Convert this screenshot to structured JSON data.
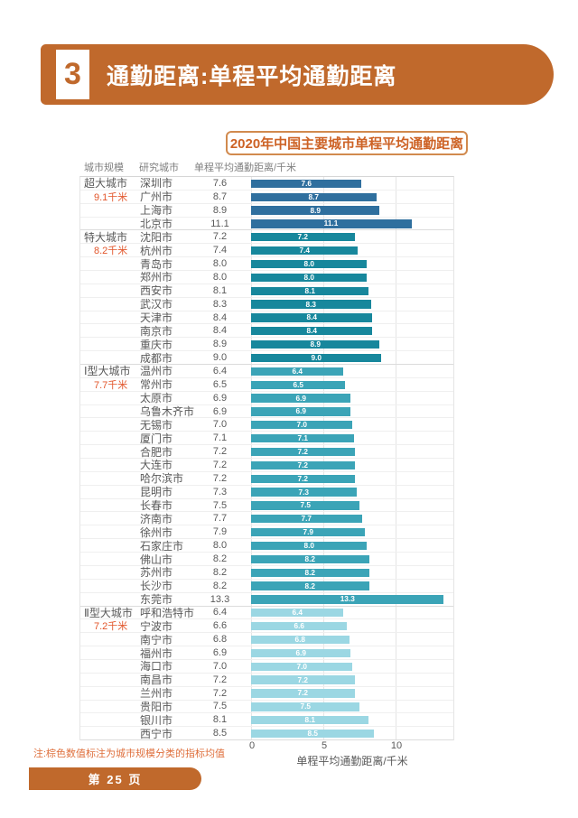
{
  "header": {
    "section_number": "3",
    "title": "通勤距离:单程平均通勤距离"
  },
  "chart_title": "2020年中国主要城市单程平均通勤距离",
  "table": {
    "columns": [
      "城市规模",
      "研究城市",
      "单程平均通勤距离/千米"
    ]
  },
  "chart_data": {
    "type": "bar",
    "orientation": "horizontal",
    "title": "2020年中国主要城市单程平均通勤距离",
    "xlabel": "单程平均通勤距离/千米",
    "xlim": [
      0,
      14
    ],
    "xticks": [
      "0",
      "5",
      "10"
    ],
    "grid": "vertical-light",
    "groups": [
      {
        "name": "超大城市",
        "mean_label": "9.1千米",
        "color": "#2f6f9e",
        "cities": [
          "深圳市",
          "广州市",
          "上海市",
          "北京市"
        ],
        "values": [
          "7.6",
          "8.7",
          "8.9",
          "11.1"
        ]
      },
      {
        "name": "特大城市",
        "mean_label": "8.2千米",
        "color": "#17879c",
        "cities": [
          "沈阳市",
          "杭州市",
          "青岛市",
          "郑州市",
          "西安市",
          "武汉市",
          "天津市",
          "南京市",
          "重庆市",
          "成都市"
        ],
        "values": [
          "7.2",
          "7.4",
          "8.0",
          "8.0",
          "8.1",
          "8.3",
          "8.4",
          "8.4",
          "8.9",
          "9.0"
        ]
      },
      {
        "name": "Ⅰ型大城市",
        "mean_label": "7.7千米",
        "color": "#3ba4b7",
        "cities": [
          "温州市",
          "常州市",
          "太原市",
          "乌鲁木齐市",
          "无锡市",
          "厦门市",
          "合肥市",
          "大连市",
          "哈尔滨市",
          "昆明市",
          "长春市",
          "济南市",
          "徐州市",
          "石家庄市",
          "佛山市",
          "苏州市",
          "长沙市",
          "东莞市"
        ],
        "values": [
          "6.4",
          "6.5",
          "6.9",
          "6.9",
          "7.0",
          "7.1",
          "7.2",
          "7.2",
          "7.2",
          "7.3",
          "7.5",
          "7.7",
          "7.9",
          "8.0",
          "8.2",
          "8.2",
          "8.2",
          "13.3"
        ]
      },
      {
        "name": "Ⅱ型大城市",
        "mean_label": "7.2千米",
        "color": "#9bd7e3",
        "cities": [
          "呼和浩特市",
          "宁波市",
          "南宁市",
          "福州市",
          "海口市",
          "南昌市",
          "兰州市",
          "贵阳市",
          "银川市",
          "西宁市"
        ],
        "values": [
          "6.4",
          "6.6",
          "6.8",
          "6.9",
          "7.0",
          "7.2",
          "7.2",
          "7.5",
          "8.1",
          "8.5"
        ]
      }
    ]
  },
  "note": "注:棕色数值标注为城市规模分类的指标均值",
  "footer": {
    "page_label": "第 25 页"
  },
  "colors": {
    "banner_orange": "#c0692c",
    "chart_title_orange": "#cd6225",
    "mean_label_orange": "#e2552a",
    "note_orange": "#df6f3c",
    "text_gray": "#595959",
    "header_gray": "#7f7f7f"
  }
}
